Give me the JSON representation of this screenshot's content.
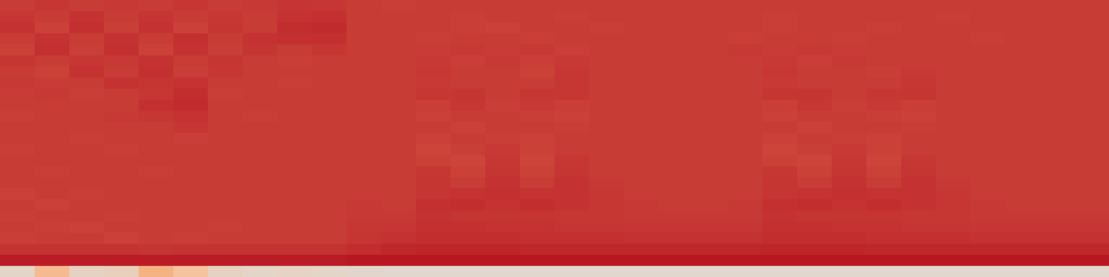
{
  "chart_data": {
    "type": "heatmap",
    "color": "Magma",
    "tick_labels": false,
    "zlim": [
      0,
      1
    ],
    "cells": [
      [
        0.8,
        0.82,
        0.8,
        0.81,
        0.8,
        0.82,
        0.8,
        0.81,
        0.83,
        0.82,
        0.8,
        0.79,
        0.8,
        0.8,
        0.8,
        0.8,
        0.8,
        0.8,
        0.8,
        0.8,
        0.8,
        0.8,
        0.8,
        0.8,
        0.8,
        0.8,
        0.8,
        0.8,
        0.8,
        0.8,
        0.8,
        0.8
      ],
      [
        0.82,
        0.8,
        0.84,
        0.8,
        0.83,
        0.8,
        0.82,
        0.8,
        0.84,
        0.85,
        0.8,
        0.8,
        0.8,
        0.79,
        0.8,
        0.8,
        0.79,
        0.8,
        0.8,
        0.8,
        0.8,
        0.8,
        0.79,
        0.8,
        0.8,
        0.8,
        0.8,
        0.79,
        0.8,
        0.8,
        0.8,
        0.8
      ],
      [
        0.84,
        0.78,
        0.85,
        0.79,
        0.84,
        0.78,
        0.83,
        0.8,
        0.86,
        0.87,
        0.8,
        0.8,
        0.8,
        0.79,
        0.78,
        0.8,
        0.8,
        0.79,
        0.8,
        0.8,
        0.8,
        0.8,
        0.79,
        0.8,
        0.8,
        0.79,
        0.8,
        0.8,
        0.8,
        0.8,
        0.8,
        0.8
      ],
      [
        0.8,
        0.84,
        0.8,
        0.84,
        0.8,
        0.85,
        0.8,
        0.84,
        0.85,
        0.85,
        0.8,
        0.8,
        0.79,
        0.8,
        0.8,
        0.79,
        0.8,
        0.8,
        0.8,
        0.8,
        0.8,
        0.79,
        0.8,
        0.8,
        0.79,
        0.8,
        0.8,
        0.8,
        0.79,
        0.8,
        0.8,
        0.8
      ],
      [
        0.78,
        0.85,
        0.79,
        0.85,
        0.78,
        0.84,
        0.79,
        0.83,
        0.8,
        0.82,
        0.8,
        0.8,
        0.8,
        0.81,
        0.8,
        0.81,
        0.79,
        0.8,
        0.8,
        0.8,
        0.8,
        0.81,
        0.8,
        0.81,
        0.8,
        0.8,
        0.8,
        0.8,
        0.8,
        0.8,
        0.8,
        0.8
      ],
      [
        0.83,
        0.8,
        0.82,
        0.81,
        0.84,
        0.8,
        0.83,
        0.8,
        0.79,
        0.8,
        0.8,
        0.8,
        0.81,
        0.79,
        0.81,
        0.79,
        0.81,
        0.8,
        0.8,
        0.8,
        0.8,
        0.8,
        0.81,
        0.79,
        0.81,
        0.8,
        0.8,
        0.8,
        0.8,
        0.8,
        0.8,
        0.8
      ],
      [
        0.8,
        0.78,
        0.84,
        0.8,
        0.85,
        0.79,
        0.82,
        0.8,
        0.8,
        0.8,
        0.8,
        0.8,
        0.82,
        0.8,
        0.8,
        0.78,
        0.82,
        0.8,
        0.8,
        0.8,
        0.8,
        0.8,
        0.82,
        0.8,
        0.8,
        0.79,
        0.81,
        0.8,
        0.8,
        0.8,
        0.8,
        0.8
      ],
      [
        0.81,
        0.8,
        0.8,
        0.84,
        0.83,
        0.84,
        0.8,
        0.8,
        0.79,
        0.8,
        0.8,
        0.8,
        0.81,
        0.8,
        0.8,
        0.8,
        0.82,
        0.8,
        0.8,
        0.8,
        0.8,
        0.8,
        0.81,
        0.8,
        0.8,
        0.8,
        0.82,
        0.8,
        0.8,
        0.8,
        0.8,
        0.8
      ],
      [
        0.8,
        0.81,
        0.79,
        0.8,
        0.82,
        0.86,
        0.79,
        0.8,
        0.8,
        0.8,
        0.8,
        0.8,
        0.82,
        0.83,
        0.8,
        0.82,
        0.82,
        0.8,
        0.8,
        0.8,
        0.8,
        0.8,
        0.83,
        0.83,
        0.8,
        0.82,
        0.83,
        0.8,
        0.8,
        0.8,
        0.8,
        0.8
      ],
      [
        0.8,
        0.8,
        0.8,
        0.8,
        0.85,
        0.87,
        0.8,
        0.8,
        0.8,
        0.8,
        0.8,
        0.8,
        0.79,
        0.82,
        0.79,
        0.81,
        0.79,
        0.8,
        0.8,
        0.8,
        0.8,
        0.8,
        0.79,
        0.82,
        0.79,
        0.81,
        0.79,
        0.8,
        0.8,
        0.8,
        0.8,
        0.8
      ],
      [
        0.79,
        0.8,
        0.8,
        0.81,
        0.82,
        0.84,
        0.8,
        0.79,
        0.8,
        0.8,
        0.8,
        0.8,
        0.78,
        0.8,
        0.8,
        0.79,
        0.78,
        0.8,
        0.8,
        0.8,
        0.8,
        0.8,
        0.78,
        0.8,
        0.8,
        0.79,
        0.78,
        0.8,
        0.8,
        0.8,
        0.8,
        0.8
      ],
      [
        0.8,
        0.8,
        0.8,
        0.8,
        0.8,
        0.82,
        0.8,
        0.8,
        0.8,
        0.8,
        0.8,
        0.8,
        0.8,
        0.78,
        0.8,
        0.8,
        0.79,
        0.8,
        0.8,
        0.8,
        0.8,
        0.8,
        0.8,
        0.78,
        0.8,
        0.8,
        0.79,
        0.8,
        0.8,
        0.8,
        0.8,
        0.8
      ],
      [
        0.8,
        0.8,
        0.79,
        0.8,
        0.8,
        0.79,
        0.8,
        0.8,
        0.8,
        0.8,
        0.8,
        0.8,
        0.78,
        0.8,
        0.79,
        0.78,
        0.8,
        0.8,
        0.8,
        0.8,
        0.8,
        0.8,
        0.78,
        0.8,
        0.79,
        0.78,
        0.8,
        0.8,
        0.8,
        0.8,
        0.8,
        0.8
      ],
      [
        0.79,
        0.8,
        0.8,
        0.79,
        0.8,
        0.8,
        0.8,
        0.8,
        0.8,
        0.8,
        0.8,
        0.8,
        0.77,
        0.79,
        0.81,
        0.78,
        0.8,
        0.8,
        0.8,
        0.8,
        0.8,
        0.8,
        0.77,
        0.79,
        0.81,
        0.78,
        0.8,
        0.8,
        0.8,
        0.8,
        0.8,
        0.8
      ],
      [
        0.8,
        0.8,
        0.8,
        0.8,
        0.8,
        0.8,
        0.8,
        0.8,
        0.8,
        0.8,
        0.8,
        0.8,
        0.78,
        0.77,
        0.82,
        0.77,
        0.82,
        0.8,
        0.8,
        0.8,
        0.8,
        0.8,
        0.78,
        0.77,
        0.82,
        0.77,
        0.82,
        0.8,
        0.8,
        0.8,
        0.8,
        0.8
      ],
      [
        0.8,
        0.79,
        0.8,
        0.8,
        0.79,
        0.8,
        0.8,
        0.8,
        0.8,
        0.8,
        0.8,
        0.8,
        0.82,
        0.78,
        0.83,
        0.78,
        0.83,
        0.8,
        0.8,
        0.8,
        0.8,
        0.8,
        0.82,
        0.78,
        0.83,
        0.78,
        0.83,
        0.8,
        0.8,
        0.8,
        0.8,
        0.8
      ],
      [
        0.8,
        0.8,
        0.8,
        0.8,
        0.8,
        0.8,
        0.8,
        0.8,
        0.8,
        0.8,
        0.8,
        0.8,
        0.83,
        0.8,
        0.84,
        0.8,
        0.84,
        0.81,
        0.8,
        0.8,
        0.8,
        0.8,
        0.83,
        0.8,
        0.84,
        0.8,
        0.84,
        0.81,
        0.8,
        0.8,
        0.8,
        0.8
      ],
      [
        0.78,
        0.8,
        0.79,
        0.8,
        0.8,
        0.8,
        0.8,
        0.8,
        0.8,
        0.8,
        0.8,
        0.8,
        0.83,
        0.84,
        0.85,
        0.84,
        0.84,
        0.82,
        0.8,
        0.8,
        0.8,
        0.8,
        0.83,
        0.84,
        0.85,
        0.84,
        0.84,
        0.82,
        0.8,
        0.8,
        0.8,
        0.8
      ],
      [
        0.8,
        0.78,
        0.8,
        0.8,
        0.8,
        0.8,
        0.8,
        0.8,
        0.8,
        0.8,
        0.81,
        0.8,
        0.85,
        0.86,
        0.84,
        0.86,
        0.84,
        0.82,
        0.81,
        0.8,
        0.8,
        0.81,
        0.85,
        0.86,
        0.84,
        0.86,
        0.84,
        0.82,
        0.81,
        0.8,
        0.8,
        0.8
      ],
      [
        0.79,
        0.8,
        0.8,
        0.79,
        0.8,
        0.8,
        0.8,
        0.8,
        0.8,
        0.8,
        0.81,
        0.81,
        0.84,
        0.83,
        0.83,
        0.83,
        0.82,
        0.82,
        0.81,
        0.81,
        0.81,
        0.81,
        0.84,
        0.83,
        0.83,
        0.83,
        0.82,
        0.82,
        0.81,
        0.81,
        0.81,
        0.81
      ],
      [
        0.8,
        0.79,
        0.78,
        0.8,
        0.8,
        0.8,
        0.79,
        0.8,
        0.8,
        0.8,
        0.82,
        0.82,
        0.85,
        0.85,
        0.84,
        0.84,
        0.83,
        0.83,
        0.82,
        0.82,
        0.82,
        0.82,
        0.85,
        0.85,
        0.84,
        0.84,
        0.83,
        0.83,
        0.82,
        0.82,
        0.82,
        0.82
      ],
      [
        0.79,
        0.8,
        0.8,
        0.78,
        0.8,
        0.79,
        0.8,
        0.8,
        0.8,
        0.8,
        0.83,
        0.84,
        0.86,
        0.86,
        0.86,
        0.85,
        0.85,
        0.85,
        0.84,
        0.84,
        0.84,
        0.84,
        0.86,
        0.86,
        0.86,
        0.85,
        0.85,
        0.85,
        0.84,
        0.84,
        0.84,
        0.84
      ],
      [
        0.84,
        0.84,
        0.84,
        0.84,
        0.83,
        0.84,
        0.84,
        0.84,
        0.84,
        0.84,
        0.86,
        0.88,
        0.89,
        0.89,
        0.89,
        0.88,
        0.88,
        0.88,
        0.88,
        0.88,
        0.88,
        0.88,
        0.89,
        0.89,
        0.89,
        0.88,
        0.88,
        0.88,
        0.88,
        0.88,
        0.88,
        0.88
      ],
      [
        0.93,
        0.93,
        0.93,
        0.93,
        0.93,
        0.93,
        0.93,
        0.93,
        0.93,
        0.93,
        0.95,
        0.95,
        0.95,
        0.95,
        0.95,
        0.95,
        0.95,
        0.95,
        0.95,
        0.95,
        0.95,
        0.95,
        0.95,
        0.95,
        0.95,
        0.95,
        0.95,
        0.95,
        0.95,
        0.95,
        0.95,
        0.95
      ],
      [
        0.06,
        0.25,
        0.08,
        0.1,
        0.3,
        0.2,
        0.08,
        0.06,
        0.07,
        0.06,
        0.05,
        0.04,
        0.04,
        0.04,
        0.04,
        0.04,
        0.04,
        0.04,
        0.04,
        0.04,
        0.04,
        0.04,
        0.04,
        0.04,
        0.04,
        0.04,
        0.04,
        0.04,
        0.04,
        0.04,
        0.04,
        0.04
      ]
    ]
  }
}
